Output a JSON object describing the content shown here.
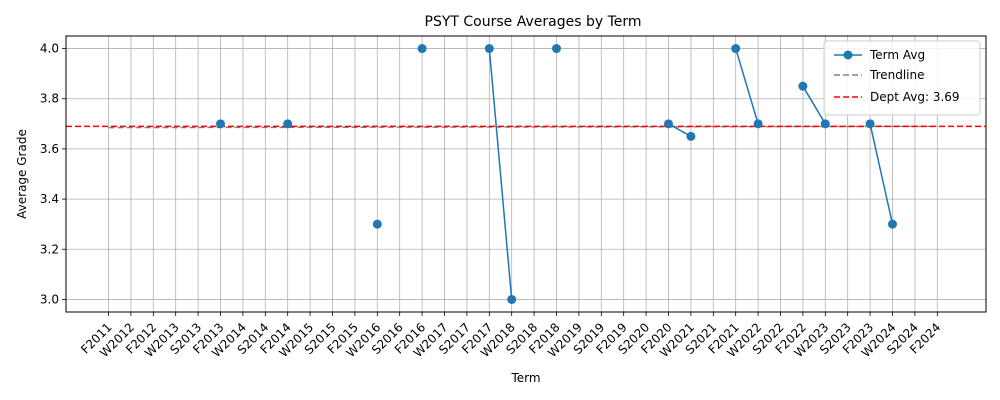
{
  "chart_data": {
    "type": "line",
    "title": "PSYT Course Averages by Term",
    "xlabel": "Term",
    "ylabel": "Average Grade",
    "categories": [
      "F2011",
      "W2012",
      "F2012",
      "W2013",
      "S2013",
      "F2013",
      "W2014",
      "S2014",
      "F2014",
      "W2015",
      "S2015",
      "F2015",
      "W2016",
      "S2016",
      "F2016",
      "W2017",
      "S2017",
      "F2017",
      "W2018",
      "S2018",
      "F2018",
      "W2019",
      "S2019",
      "F2019",
      "S2020",
      "F2020",
      "W2021",
      "S2021",
      "F2021",
      "W2022",
      "S2022",
      "F2022",
      "W2023",
      "S2023",
      "F2023",
      "W2024",
      "S2024",
      "F2024"
    ],
    "ylim": [
      2.95,
      4.05
    ],
    "yticks": [
      3.0,
      3.2,
      3.4,
      3.6,
      3.8,
      4.0
    ],
    "ytick_labels": [
      "3.0",
      "3.2",
      "3.4",
      "3.6",
      "3.8",
      "4.0"
    ],
    "grid": true,
    "legend_position": "top-right",
    "series": [
      {
        "name": "Term Avg",
        "color": "#1f77b4",
        "values": [
          null,
          null,
          null,
          null,
          null,
          3.7,
          null,
          null,
          3.7,
          null,
          null,
          null,
          3.3,
          null,
          4.0,
          null,
          null,
          4.0,
          3.0,
          null,
          4.0,
          null,
          null,
          null,
          null,
          3.7,
          3.65,
          null,
          4.0,
          3.7,
          null,
          3.85,
          3.7,
          null,
          3.7,
          3.3,
          null,
          null
        ]
      },
      {
        "name": "Trendline",
        "color": "#808080",
        "style": "dashed",
        "start": 3.685,
        "end": 3.69
      },
      {
        "name": "Dept Avg: 3.69",
        "color": "#ff0000",
        "style": "dashed",
        "value": 3.69
      }
    ]
  }
}
